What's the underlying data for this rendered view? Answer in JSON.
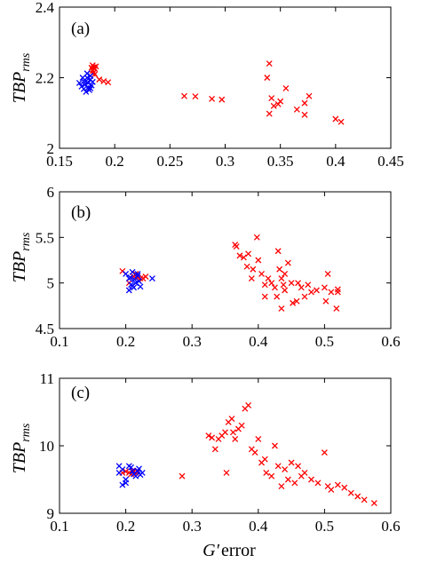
{
  "chart_data": [
    {
      "type": "scatter",
      "panel_label": "(a)",
      "ylabel": {
        "main": "TBP",
        "sub": "rms"
      },
      "xlabel": "",
      "xlim": [
        0.15,
        0.45
      ],
      "ylim": [
        2,
        2.4
      ],
      "xticks": [
        "0.15",
        "0.2",
        "0.25",
        "0.3",
        "0.35",
        "0.4",
        "0.45"
      ],
      "yticks": [
        "2",
        "2.2",
        "2.4"
      ],
      "series": [
        {
          "color": "#ff0000",
          "marker": "x",
          "points": [
            [
              0.18,
              2.235
            ],
            [
              0.181,
              2.23
            ],
            [
              0.182,
              2.225
            ],
            [
              0.18,
              2.22
            ],
            [
              0.181,
              2.215
            ],
            [
              0.183,
              2.232
            ],
            [
              0.179,
              2.228
            ],
            [
              0.18,
              2.212
            ],
            [
              0.182,
              2.21
            ],
            [
              0.186,
              2.195
            ],
            [
              0.19,
              2.19
            ],
            [
              0.194,
              2.187
            ],
            [
              0.263,
              2.148
            ],
            [
              0.273,
              2.147
            ],
            [
              0.288,
              2.14
            ],
            [
              0.297,
              2.138
            ],
            [
              0.338,
              2.2
            ],
            [
              0.34,
              2.24
            ],
            [
              0.342,
              2.142
            ],
            [
              0.344,
              2.12
            ],
            [
              0.348,
              2.125
            ],
            [
              0.34,
              2.098
            ],
            [
              0.35,
              2.133
            ],
            [
              0.355,
              2.17
            ],
            [
              0.365,
              2.11
            ],
            [
              0.372,
              2.095
            ],
            [
              0.372,
              2.128
            ],
            [
              0.376,
              2.148
            ],
            [
              0.4,
              2.083
            ],
            [
              0.405,
              2.075
            ]
          ]
        },
        {
          "color": "#0000ff",
          "marker": "x",
          "points": [
            [
              0.168,
              2.185
            ],
            [
              0.172,
              2.19
            ],
            [
              0.175,
              2.2
            ],
            [
              0.178,
              2.195
            ],
            [
              0.17,
              2.175
            ],
            [
              0.173,
              2.18
            ],
            [
              0.176,
              2.172
            ],
            [
              0.179,
              2.178
            ],
            [
              0.174,
              2.16
            ],
            [
              0.177,
              2.165
            ],
            [
              0.172,
              2.168
            ],
            [
              0.178,
              2.205
            ],
            [
              0.175,
              2.212
            ],
            [
              0.171,
              2.2
            ],
            [
              0.176,
              2.185
            ],
            [
              0.18,
              2.188
            ],
            [
              0.174,
              2.19
            ],
            [
              0.178,
              2.17
            ]
          ]
        }
      ]
    },
    {
      "type": "scatter",
      "panel_label": "(b)",
      "ylabel": {
        "main": "TBP",
        "sub": "rms"
      },
      "xlabel": "",
      "xlim": [
        0.1,
        0.6
      ],
      "ylim": [
        4.5,
        6
      ],
      "xticks": [
        "0.1",
        "0.2",
        "0.3",
        "0.4",
        "0.5",
        "0.6"
      ],
      "yticks": [
        "4.5",
        "5",
        "5.5",
        "6"
      ],
      "series": [
        {
          "color": "#ff0000",
          "marker": "x",
          "points": [
            [
              0.195,
              5.13
            ],
            [
              0.205,
              5.0
            ],
            [
              0.212,
              5.07
            ],
            [
              0.218,
              5.06
            ],
            [
              0.222,
              5.05
            ],
            [
              0.226,
              5.05
            ],
            [
              0.23,
              5.07
            ],
            [
              0.215,
              5.1
            ],
            [
              0.365,
              5.42
            ],
            [
              0.367,
              5.4
            ],
            [
              0.372,
              5.3
            ],
            [
              0.378,
              5.28
            ],
            [
              0.383,
              5.18
            ],
            [
              0.385,
              5.32
            ],
            [
              0.39,
              5.05
            ],
            [
              0.392,
              5.15
            ],
            [
              0.398,
              5.5
            ],
            [
              0.4,
              5.25
            ],
            [
              0.405,
              5.1
            ],
            [
              0.41,
              4.98
            ],
            [
              0.41,
              4.85
            ],
            [
              0.415,
              5.05
            ],
            [
              0.42,
              5.0
            ],
            [
              0.425,
              4.95
            ],
            [
              0.428,
              4.85
            ],
            [
              0.43,
              5.35
            ],
            [
              0.432,
              5.15
            ],
            [
              0.435,
              5.05
            ],
            [
              0.435,
              4.72
            ],
            [
              0.438,
              4.98
            ],
            [
              0.44,
              5.1
            ],
            [
              0.44,
              4.92
            ],
            [
              0.445,
              5.22
            ],
            [
              0.45,
              5.0
            ],
            [
              0.452,
              4.78
            ],
            [
              0.458,
              4.8
            ],
            [
              0.46,
              5.0
            ],
            [
              0.465,
              4.95
            ],
            [
              0.47,
              4.85
            ],
            [
              0.475,
              4.98
            ],
            [
              0.48,
              4.9
            ],
            [
              0.488,
              4.92
            ],
            [
              0.5,
              4.95
            ],
            [
              0.502,
              4.8
            ],
            [
              0.505,
              5.1
            ],
            [
              0.51,
              4.9
            ],
            [
              0.518,
              4.72
            ],
            [
              0.52,
              4.93
            ],
            [
              0.52,
              4.9
            ]
          ]
        },
        {
          "color": "#0000ff",
          "marker": "x",
          "points": [
            [
              0.2,
              5.1
            ],
            [
              0.205,
              5.05
            ],
            [
              0.208,
              4.98
            ],
            [
              0.21,
              5.12
            ],
            [
              0.212,
              4.95
            ],
            [
              0.215,
              5.0
            ],
            [
              0.218,
              5.08
            ],
            [
              0.205,
              4.92
            ],
            [
              0.21,
              4.97
            ],
            [
              0.22,
              5.02
            ],
            [
              0.222,
              4.96
            ],
            [
              0.218,
              5.1
            ],
            [
              0.24,
              5.05
            ],
            [
              0.213,
              5.04
            ],
            [
              0.207,
              5.06
            ]
          ]
        }
      ]
    },
    {
      "type": "scatter",
      "panel_label": "(c)",
      "ylabel": {
        "main": "TBP",
        "sub": "rms"
      },
      "xlabel": {
        "main": "G′",
        "rest": "error"
      },
      "xlim": [
        0.1,
        0.6
      ],
      "ylim": [
        9,
        11
      ],
      "xticks": [
        "0.1",
        "0.2",
        "0.3",
        "0.4",
        "0.5",
        "0.6"
      ],
      "yticks": [
        "9",
        "10",
        "11"
      ],
      "series": [
        {
          "color": "#ff0000",
          "marker": "x",
          "points": [
            [
              0.2,
              9.62
            ],
            [
              0.205,
              9.6
            ],
            [
              0.21,
              9.63
            ],
            [
              0.215,
              9.6
            ],
            [
              0.208,
              9.58
            ],
            [
              0.212,
              9.62
            ],
            [
              0.218,
              9.61
            ],
            [
              0.195,
              9.6
            ],
            [
              0.285,
              9.55
            ],
            [
              0.325,
              10.15
            ],
            [
              0.33,
              10.12
            ],
            [
              0.335,
              9.95
            ],
            [
              0.34,
              10.1
            ],
            [
              0.345,
              10.15
            ],
            [
              0.35,
              10.2
            ],
            [
              0.352,
              9.6
            ],
            [
              0.355,
              10.35
            ],
            [
              0.36,
              10.4
            ],
            [
              0.362,
              10.2
            ],
            [
              0.365,
              10.1
            ],
            [
              0.37,
              10.25
            ],
            [
              0.375,
              10.3
            ],
            [
              0.38,
              10.55
            ],
            [
              0.385,
              10.6
            ],
            [
              0.39,
              9.95
            ],
            [
              0.395,
              9.9
            ],
            [
              0.4,
              10.1
            ],
            [
              0.405,
              9.75
            ],
            [
              0.41,
              9.8
            ],
            [
              0.412,
              9.6
            ],
            [
              0.42,
              9.55
            ],
            [
              0.425,
              10.0
            ],
            [
              0.43,
              9.7
            ],
            [
              0.435,
              9.4
            ],
            [
              0.44,
              9.65
            ],
            [
              0.445,
              9.5
            ],
            [
              0.45,
              9.75
            ],
            [
              0.455,
              9.45
            ],
            [
              0.46,
              9.7
            ],
            [
              0.465,
              9.55
            ],
            [
              0.47,
              9.6
            ],
            [
              0.48,
              9.5
            ],
            [
              0.49,
              9.45
            ],
            [
              0.5,
              9.9
            ],
            [
              0.505,
              9.4
            ],
            [
              0.51,
              9.35
            ],
            [
              0.52,
              9.42
            ],
            [
              0.53,
              9.38
            ],
            [
              0.54,
              9.3
            ],
            [
              0.55,
              9.25
            ],
            [
              0.56,
              9.2
            ],
            [
              0.575,
              9.15
            ]
          ]
        },
        {
          "color": "#0000ff",
          "marker": "x",
          "points": [
            [
              0.19,
              9.6
            ],
            [
              0.195,
              9.65
            ],
            [
              0.2,
              9.45
            ],
            [
              0.205,
              9.7
            ],
            [
              0.21,
              9.62
            ],
            [
              0.215,
              9.55
            ],
            [
              0.22,
              9.66
            ],
            [
              0.225,
              9.6
            ],
            [
              0.195,
              9.42
            ],
            [
              0.2,
              9.5
            ],
            [
              0.208,
              9.68
            ],
            [
              0.212,
              9.58
            ],
            [
              0.218,
              9.63
            ],
            [
              0.222,
              9.57
            ],
            [
              0.19,
              9.7
            ]
          ]
        }
      ]
    }
  ]
}
